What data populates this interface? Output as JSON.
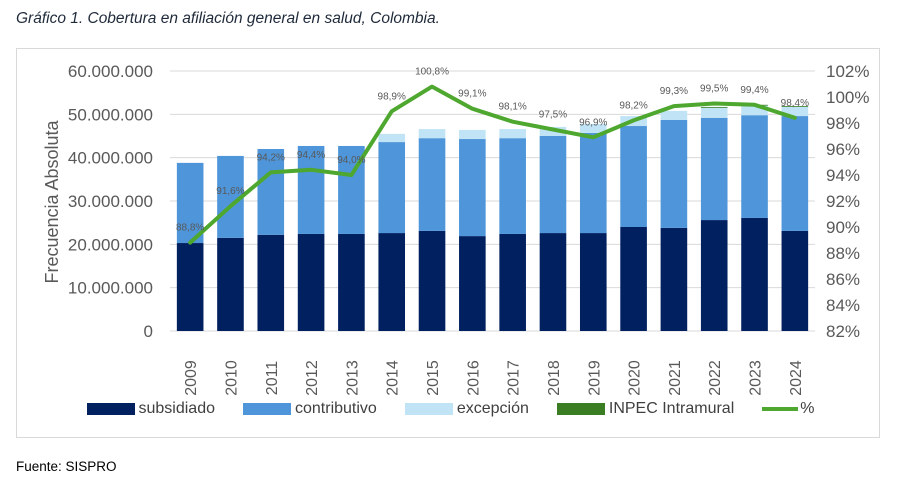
{
  "title": "Gráfico 1. Cobertura en afiliación general en salud, Colombia.",
  "source": "Fuente: SISPRO",
  "chart_data": {
    "type": "bar",
    "subtype": "stacked bar with line on secondary axis",
    "title": "Gráfico 1. Cobertura en afiliación general en salud, Colombia.",
    "xlabel": "",
    "ylabel": "Frecuencia Absoluta",
    "y2label": "",
    "categories": [
      "2009",
      "2010",
      "2011",
      "2012",
      "2013",
      "2014",
      "2015",
      "2016",
      "2017",
      "2018",
      "2019",
      "2020",
      "2021",
      "2022",
      "2023",
      "2024"
    ],
    "ylim": [
      0,
      60000000
    ],
    "yticks": [
      "0",
      "10.000.000",
      "20.000.000",
      "30.000.000",
      "40.000.000",
      "50.000.000",
      "60.000.000"
    ],
    "ytick_values": [
      0,
      10000000,
      20000000,
      30000000,
      40000000,
      50000000,
      60000000
    ],
    "y2lim": [
      82,
      102
    ],
    "y2ticks": [
      "82%",
      "84%",
      "86%",
      "88%",
      "90%",
      "92%",
      "94%",
      "96%",
      "98%",
      "100%",
      "102%"
    ],
    "y2tick_values": [
      82,
      84,
      86,
      88,
      90,
      92,
      94,
      96,
      98,
      100,
      102
    ],
    "grid": true,
    "legend_position": "bottom",
    "series": [
      {
        "name": "subsidiado",
        "color": "#002060",
        "axis": "left",
        "kind": "bar",
        "values": [
          20300000,
          21500000,
          22200000,
          22400000,
          22400000,
          22600000,
          23100000,
          21900000,
          22400000,
          22600000,
          22600000,
          24000000,
          23800000,
          25600000,
          26100000,
          23100000
        ]
      },
      {
        "name": "contributivo",
        "color": "#4e95d9",
        "axis": "left",
        "kind": "bar",
        "values": [
          18500000,
          18900000,
          19800000,
          20300000,
          20300000,
          21000000,
          21400000,
          22400000,
          22100000,
          22400000,
          23100000,
          23300000,
          24900000,
          23600000,
          23700000,
          26500000
        ]
      },
      {
        "name": "excepción",
        "color": "#c0e4f5",
        "axis": "left",
        "kind": "bar",
        "values": [
          0,
          0,
          0,
          0,
          0,
          1900000,
          2100000,
          2100000,
          2100000,
          2100000,
          2100000,
          2300000,
          2100000,
          2400000,
          2300000,
          2200000
        ]
      },
      {
        "name": "INPEC Intramural",
        "color": "#3a7d22",
        "axis": "left",
        "kind": "bar",
        "values": [
          0,
          0,
          0,
          0,
          0,
          0,
          0,
          0,
          0,
          0,
          0,
          0,
          0,
          100000,
          100000,
          100000
        ]
      },
      {
        "name": "%",
        "color": "#4ea72e",
        "axis": "right",
        "kind": "line",
        "values": [
          88.8,
          91.6,
          94.2,
          94.4,
          94.0,
          98.9,
          100.8,
          99.1,
          98.1,
          97.5,
          96.9,
          98.2,
          99.3,
          99.5,
          99.4,
          98.4
        ],
        "labels": [
          "88,8%",
          "91,6%",
          "94,2%",
          "94,4%",
          "94,0%",
          "98,9%",
          "100,8%",
          "99,1%",
          "98,1%",
          "97,5%",
          "96,9%",
          "98,2%",
          "99,3%",
          "99,5%",
          "99,4%",
          "98,4%"
        ]
      }
    ]
  }
}
